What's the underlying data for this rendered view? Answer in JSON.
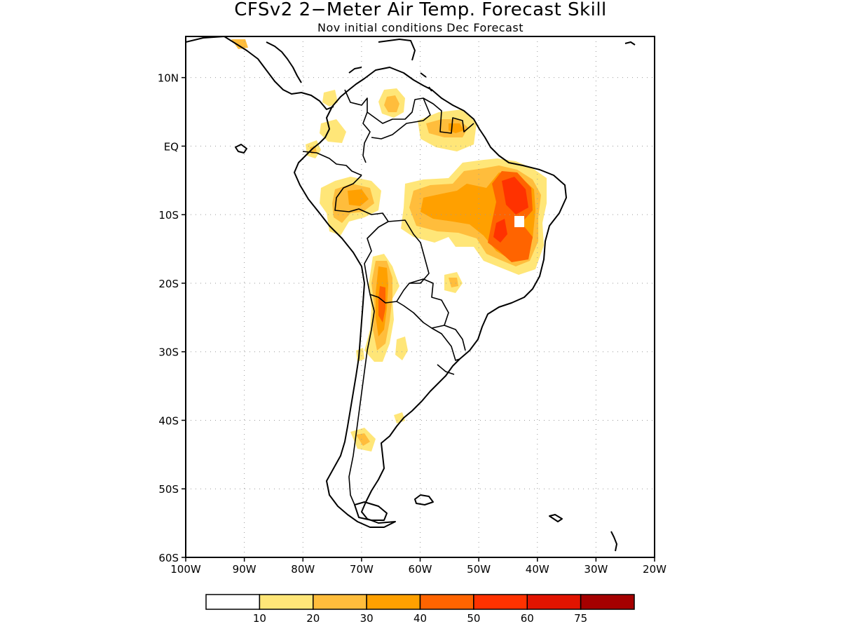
{
  "figure": {
    "title": "CFSv2 2−Meter Air Temp. Forecast Skill",
    "subtitle": "Nov initial conditions  Dec Forecast"
  },
  "map": {
    "lon_range": [
      -100,
      -20
    ],
    "lat_range": [
      -60,
      16
    ],
    "grid_lons": [
      -90,
      -80,
      -70,
      -60,
      -50,
      -40,
      -30
    ],
    "grid_lats": [
      10,
      0,
      -10,
      -20,
      -30,
      -40,
      -50
    ],
    "lon_ticks": [
      {
        "value": -100,
        "label": "100W"
      },
      {
        "value": -90,
        "label": "90W"
      },
      {
        "value": -80,
        "label": "80W"
      },
      {
        "value": -70,
        "label": "70W"
      },
      {
        "value": -60,
        "label": "60W"
      },
      {
        "value": -50,
        "label": "50W"
      },
      {
        "value": -40,
        "label": "40W"
      },
      {
        "value": -30,
        "label": "30W"
      },
      {
        "value": -20,
        "label": "20W"
      }
    ],
    "lat_ticks": [
      {
        "value": 10,
        "label": "10N"
      },
      {
        "value": 0,
        "label": "EQ"
      },
      {
        "value": -10,
        "label": "10S"
      },
      {
        "value": -20,
        "label": "20S"
      },
      {
        "value": -30,
        "label": "30S"
      },
      {
        "value": -40,
        "label": "40S"
      },
      {
        "value": -50,
        "label": "50S"
      },
      {
        "value": -60,
        "label": "60S"
      }
    ]
  },
  "legend": {
    "colors": [
      "#ffffff",
      "#ffe678",
      "#ffbd3c",
      "#ffa000",
      "#ff6400",
      "#ff3200",
      "#e11400",
      "#a50000"
    ],
    "labels": [
      "10",
      "20",
      "30",
      "40",
      "50",
      "60",
      "75"
    ]
  }
}
